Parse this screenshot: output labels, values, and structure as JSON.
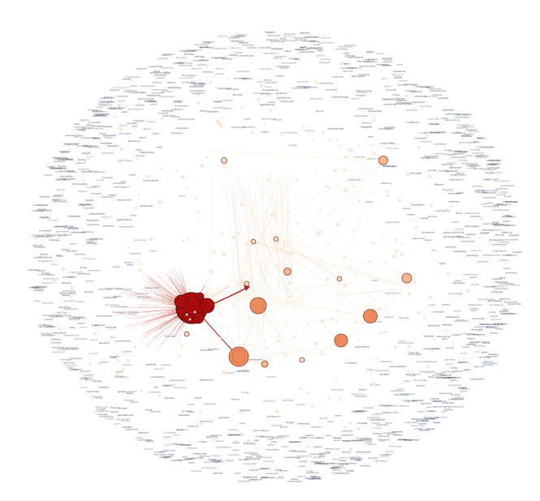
{
  "graph": {
    "kind": "network-graph",
    "colors": {
      "background": "#ffffff",
      "hub_fill": "#a80d0d",
      "hub_stroke": "#5a0606",
      "large_fill": "#ef8a5e",
      "medium_fill": "#f6b48f",
      "small_fill": "#fbd9c2",
      "tiny_fill": "#fde8d6",
      "node_stroke": "#8a4a2c",
      "edge_faint": "#f4c79a",
      "edge_hub": "#c43a2a",
      "edge_strong": "#b01f16",
      "label": "#2b3a55"
    },
    "notes": "Node labels in the original image are too small to be legible; they are rendered as illegible micro-text placeholders."
  }
}
